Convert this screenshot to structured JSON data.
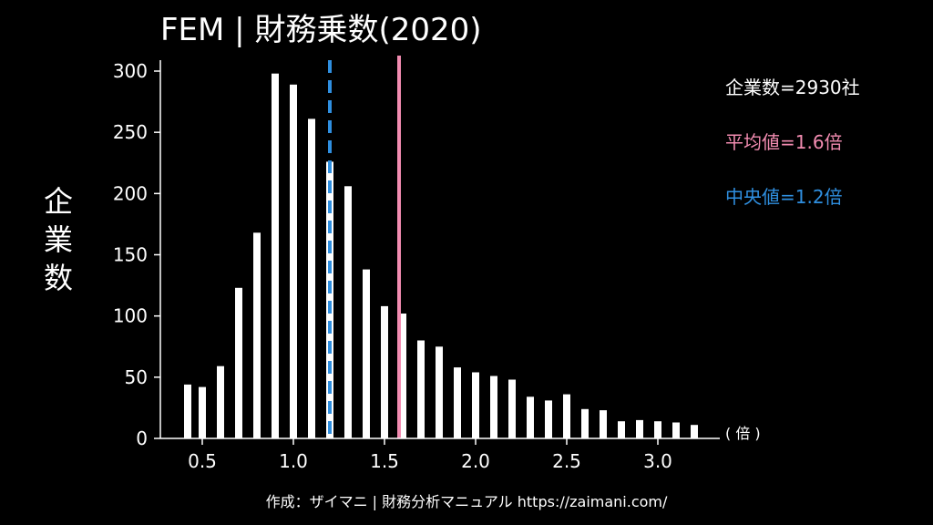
{
  "chart_data": {
    "type": "bar",
    "title": "FEM | 財務乗数(2020)",
    "ylabel": "企業数",
    "x_unit_label": "( 倍 )",
    "xlim": [
      0.3,
      3.4
    ],
    "ylim": [
      0,
      310
    ],
    "x_ticks": [
      0.5,
      1.0,
      1.5,
      2.0,
      2.5,
      3.0
    ],
    "x_tick_labels": [
      "0.5",
      "1.0",
      "1.5",
      "2.0",
      "2.5",
      "3.0"
    ],
    "y_ticks": [
      0,
      50,
      100,
      150,
      200,
      250,
      300
    ],
    "y_tick_labels": [
      "0",
      "50",
      "100",
      "150",
      "200",
      "250",
      "300"
    ],
    "bar_width": 0.04,
    "x": [
      0.42,
      0.5,
      0.6,
      0.7,
      0.8,
      0.9,
      1.0,
      1.1,
      1.2,
      1.3,
      1.4,
      1.5,
      1.6,
      1.7,
      1.8,
      1.9,
      2.0,
      2.1,
      2.2,
      2.3,
      2.4,
      2.5,
      2.6,
      2.7,
      2.8,
      2.9,
      3.0,
      3.1,
      3.2
    ],
    "values": [
      44,
      42,
      59,
      123,
      168,
      298,
      289,
      261,
      226,
      206,
      138,
      108,
      102,
      80,
      75,
      58,
      54,
      51,
      48,
      34,
      31,
      36,
      24,
      23,
      14,
      15,
      14,
      13,
      11
    ],
    "stats": {
      "count_label": "企業数=2930社",
      "mean_label": "平均値=1.6倍",
      "median_label": "中央値=1.2倍",
      "mean_value": 1.58,
      "median_value": 1.2
    },
    "colors": {
      "background": "#000000",
      "bars": "#ffffff",
      "mean": "#f28cb1",
      "median": "#2f8fe0",
      "text": "#ffffff"
    },
    "footer": "作成：ザイマニ | 財務分析マニュアル https://zaimani.com/"
  }
}
